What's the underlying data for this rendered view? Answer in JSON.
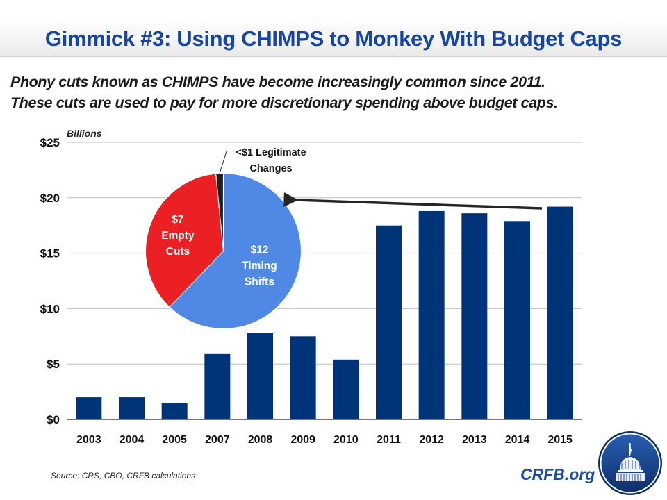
{
  "header": {
    "title": "Gimmick #3: Using CHIMPS to Monkey With Budget Caps"
  },
  "subtitle": {
    "line1": "Phony cuts known as CHIMPS have become increasingly common since 2011.",
    "line2": "These cuts are used to pay for more discretionary spending above budget caps."
  },
  "footer": {
    "source": "Source: CRS, CBO, CRFB calculations",
    "brand": "CRFB.org",
    "logo_icon": "capitol-dome-logo"
  },
  "colors": {
    "title": "#1746a2",
    "bar": "#003478",
    "pie_timing": "#4f88e5",
    "pie_empty": "#ea2024",
    "pie_legit": "#1f1f1f",
    "brand": "#1d4e9e",
    "gridline": "#bfbfbf"
  },
  "chart_data": [
    {
      "type": "bar",
      "title": "",
      "units_label": "Billions",
      "xlabel": "",
      "ylabel": "Billions",
      "categories": [
        "2003",
        "2004",
        "2005",
        "2007",
        "2008",
        "2009",
        "2010",
        "2011",
        "2012",
        "2013",
        "2014",
        "2015"
      ],
      "values": [
        2.0,
        2.0,
        1.5,
        5.9,
        7.8,
        7.5,
        5.4,
        17.5,
        18.8,
        18.6,
        17.9,
        19.2
      ],
      "ylim": [
        0,
        25
      ],
      "yticks": [
        0,
        5,
        10,
        15,
        20,
        25
      ],
      "ytick_labels": [
        "$0",
        "$5",
        "$10",
        "$15",
        "$20",
        "$25"
      ],
      "grid": true,
      "annotation": {
        "type": "arrow",
        "from_category": "2015",
        "to": "pie",
        "meaning": "2015 total breakdown shown in pie"
      }
    },
    {
      "type": "pie",
      "title": "",
      "slices": [
        {
          "name": "Timing Shifts",
          "value": 12,
          "label": [
            "$12",
            "Timing",
            "Shifts"
          ]
        },
        {
          "name": "Empty Cuts",
          "value": 7,
          "label": [
            "$7",
            "Empty",
            "Cuts"
          ]
        },
        {
          "name": "Legitimate Changes",
          "value": 0.3,
          "label": [
            "<$1 Legitimate",
            "Changes"
          ]
        }
      ],
      "start_angle_deg": 0,
      "direction": "clockwise"
    }
  ]
}
